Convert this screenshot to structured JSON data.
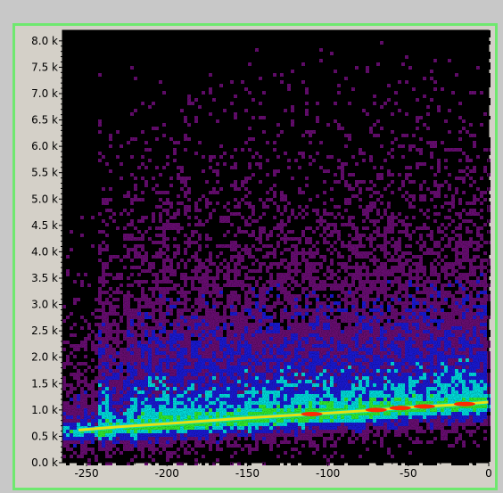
{
  "chart_data": {
    "type": "heatmap",
    "title": "",
    "xlabel": "",
    "ylabel": "",
    "xlim": [
      -265,
      0
    ],
    "ylim": [
      0,
      8200
    ],
    "x_ticks": [
      -250,
      -200,
      -150,
      -100,
      -50,
      0
    ],
    "x_tick_labels": [
      "-250",
      "-200",
      "-150",
      "-100",
      "-50",
      "0"
    ],
    "y_ticks": [
      0,
      500,
      1000,
      1500,
      2000,
      2500,
      3000,
      3500,
      4000,
      4500,
      5000,
      5500,
      6000,
      6500,
      7000,
      7500,
      8000
    ],
    "y_tick_labels": [
      "0.0 k",
      "0.5 k",
      "1.0 k",
      "1.5 k",
      "2.0 k",
      "2.5 k",
      "3.0 k",
      "3.5 k",
      "4.0 k",
      "4.5 k",
      "5.0 k",
      "5.5 k",
      "6.0 k",
      "6.5 k",
      "7.0 k",
      "7.5 k",
      "8.0 k"
    ],
    "colormap": [
      "#000000",
      "#6a0d74",
      "#1a1ad6",
      "#00e0e0",
      "#30f030",
      "#ffe000",
      "#ff2a00"
    ],
    "density_ridge": {
      "x": [
        -255,
        -230,
        -200,
        -150,
        -100,
        -70,
        -50,
        -20,
        0
      ],
      "y": [
        620,
        680,
        740,
        850,
        940,
        1000,
        1050,
        1100,
        1150
      ]
    },
    "grid": false,
    "legend": "none"
  }
}
